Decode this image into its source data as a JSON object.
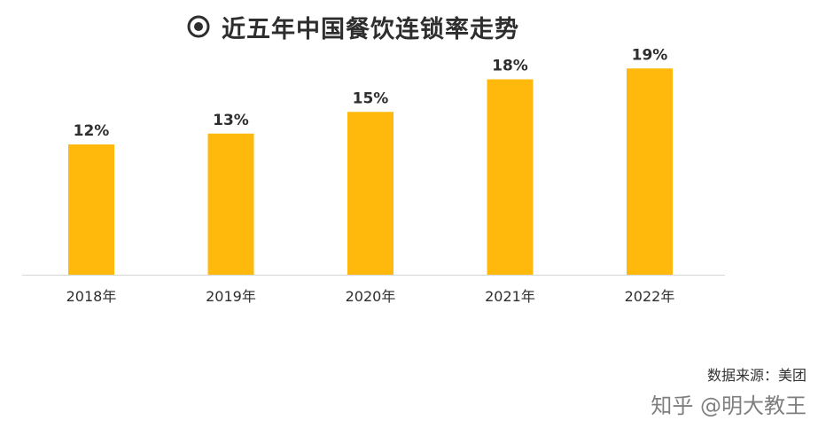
{
  "title": "近五年中国餐饮连锁率走势",
  "source": "数据来源：美团",
  "watermark": "知乎 @明大教王",
  "colors": {
    "bar": "#ffb80c",
    "axis": "#d6d6d6",
    "text": "#2e2e2e"
  },
  "chart_data": {
    "type": "bar",
    "title": "近五年中国餐饮连锁率走势",
    "categories": [
      "2018年",
      "2019年",
      "2020年",
      "2021年",
      "2022年"
    ],
    "values": [
      12,
      13,
      15,
      18,
      19
    ],
    "data_labels": [
      "12%",
      "13%",
      "15%",
      "18%",
      "19%"
    ],
    "unit": "%",
    "ylim": [
      0,
      20
    ],
    "grid": false,
    "legend": "none"
  }
}
